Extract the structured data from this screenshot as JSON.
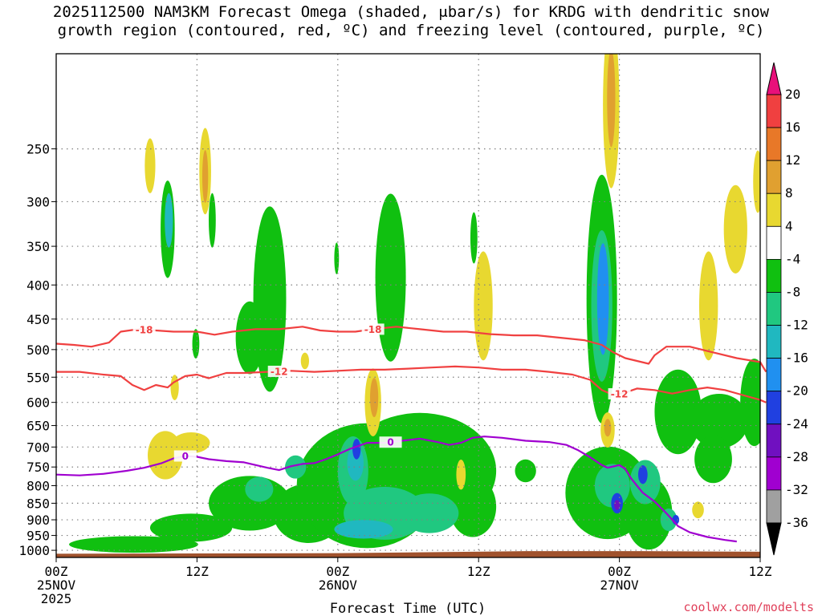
{
  "title": {
    "line1": "2025112500 NAM3KM Forecast Omega (shaded, μbar/s) for KRDG with dendritic snow",
    "line2": "growth region (contoured, red, ºC) and freezing level (contoured, purple, ºC)"
  },
  "credit": "coolwx.com/modelts",
  "colors": {
    "ground": "#a0522d",
    "dgz_contour": "#f04040",
    "freezing_contour": "#a000d0",
    "grid": "#808080"
  },
  "chart_data": {
    "type": "heatmap",
    "title": "2025112500 NAM3KM Forecast Omega (shaded, μbar/s) for KRDG with dendritic snow growth region (contoured, red, ºC) and freezing level (contoured, purple, ºC)",
    "xlabel": "Forecast Time (UTC)",
    "ylabel": "",
    "x_range_hours": [
      0,
      60
    ],
    "x_ticks": [
      {
        "hour": 0,
        "label": "00Z",
        "date": "25NOV",
        "year": "2025"
      },
      {
        "hour": 12,
        "label": "12Z",
        "date": "",
        "year": ""
      },
      {
        "hour": 24,
        "label": "00Z",
        "date": "26NOV",
        "year": ""
      },
      {
        "hour": 36,
        "label": "12Z",
        "date": "",
        "year": ""
      },
      {
        "hour": 48,
        "label": "00Z",
        "date": "27NOV",
        "year": ""
      },
      {
        "hour": 60,
        "label": "12Z",
        "date": "",
        "year": ""
      }
    ],
    "y_scale": "log-pressure",
    "y_range_hpa": [
      1025,
      180
    ],
    "y_ticks": [
      250,
      300,
      350,
      400,
      450,
      500,
      550,
      600,
      650,
      700,
      750,
      800,
      850,
      900,
      950,
      1000
    ],
    "grid": true,
    "colorbar": {
      "labels": [
        "20",
        "16",
        "12",
        "8",
        "4",
        "-4",
        "-8",
        "-12",
        "-16",
        "-20",
        "-24",
        "-28",
        "-32",
        "-36"
      ],
      "colors": [
        "#e8107a",
        "#f04040",
        "#e87828",
        "#e0a030",
        "#e8d830",
        "#ffffff",
        "#10c010",
        "#20c880",
        "#20b8c0",
        "#2090f0",
        "#2040e0",
        "#7010c0",
        "#a000d0",
        "#a0a0a0",
        "#000000"
      ]
    },
    "contours": [
      {
        "name": "dgz -18",
        "label": "-18",
        "color": "#f04040",
        "points": [
          [
            0,
            490
          ],
          [
            1.5,
            492
          ],
          [
            3,
            495
          ],
          [
            4.5,
            488
          ],
          [
            5.5,
            470
          ],
          [
            7,
            466
          ],
          [
            8.5,
            468
          ],
          [
            10,
            470
          ],
          [
            12,
            470
          ],
          [
            13.5,
            475
          ],
          [
            15,
            470
          ],
          [
            17,
            466
          ],
          [
            19,
            466
          ],
          [
            21,
            462
          ],
          [
            22.5,
            468
          ],
          [
            24,
            470
          ],
          [
            25.5,
            470
          ],
          [
            27,
            466
          ],
          [
            29,
            462
          ],
          [
            31,
            466
          ],
          [
            33,
            470
          ],
          [
            35,
            470
          ],
          [
            37,
            474
          ],
          [
            39,
            476
          ],
          [
            41,
            476
          ],
          [
            43,
            480
          ],
          [
            45,
            484
          ],
          [
            46.5,
            492
          ],
          [
            47.5,
            505
          ],
          [
            48.5,
            515
          ],
          [
            49.5,
            520
          ],
          [
            50.5,
            525
          ],
          [
            51,
            510
          ],
          [
            52,
            495
          ],
          [
            54,
            495
          ],
          [
            56,
            505
          ],
          [
            58,
            515
          ],
          [
            60,
            522
          ],
          [
            60.5,
            540
          ]
        ],
        "labels_at_hours": [
          7.5,
          27
        ]
      },
      {
        "name": "dgz -12",
        "label": "-12",
        "color": "#f04040",
        "points": [
          [
            0,
            540
          ],
          [
            2,
            540
          ],
          [
            4,
            545
          ],
          [
            5.5,
            548
          ],
          [
            6.5,
            565
          ],
          [
            7.5,
            575
          ],
          [
            8.5,
            565
          ],
          [
            9.5,
            570
          ],
          [
            10,
            560
          ],
          [
            11,
            548
          ],
          [
            12,
            545
          ],
          [
            13,
            552
          ],
          [
            14.5,
            542
          ],
          [
            16,
            542
          ],
          [
            18,
            540
          ],
          [
            20,
            538
          ],
          [
            22,
            540
          ],
          [
            24,
            538
          ],
          [
            26,
            536
          ],
          [
            28,
            536
          ],
          [
            30,
            534
          ],
          [
            32,
            532
          ],
          [
            34,
            530
          ],
          [
            36,
            532
          ],
          [
            38,
            536
          ],
          [
            40,
            536
          ],
          [
            42,
            540
          ],
          [
            44,
            545
          ],
          [
            45.5,
            555
          ],
          [
            46.5,
            575
          ],
          [
            47.5,
            585
          ],
          [
            48.5,
            580
          ],
          [
            49.5,
            572
          ],
          [
            51,
            575
          ],
          [
            52.5,
            582
          ],
          [
            54,
            575
          ],
          [
            55.5,
            570
          ],
          [
            57,
            575
          ],
          [
            58.5,
            585
          ],
          [
            60,
            595
          ],
          [
            60.5,
            600
          ]
        ],
        "labels_at_hours": [
          19,
          48
        ]
      },
      {
        "name": "freezing 0",
        "label": "0",
        "color": "#a000d0",
        "points": [
          [
            0,
            770
          ],
          [
            2,
            772
          ],
          [
            4,
            768
          ],
          [
            6,
            760
          ],
          [
            7.5,
            752
          ],
          [
            9,
            740
          ],
          [
            10,
            728
          ],
          [
            11,
            722
          ],
          [
            12,
            724
          ],
          [
            13,
            730
          ],
          [
            14.5,
            735
          ],
          [
            16,
            738
          ],
          [
            17,
            745
          ],
          [
            18,
            752
          ],
          [
            19,
            758
          ],
          [
            20,
            748
          ],
          [
            21,
            742
          ],
          [
            22,
            740
          ],
          [
            23,
            730
          ],
          [
            24,
            718
          ],
          [
            25,
            705
          ],
          [
            26.5,
            690
          ],
          [
            28,
            690
          ],
          [
            29.5,
            685
          ],
          [
            31,
            680
          ],
          [
            32.5,
            688
          ],
          [
            33.5,
            695
          ],
          [
            34.5,
            690
          ],
          [
            35.5,
            678
          ],
          [
            36.5,
            675
          ],
          [
            38,
            678
          ],
          [
            40,
            685
          ],
          [
            42,
            688
          ],
          [
            43.5,
            695
          ],
          [
            44.5,
            708
          ],
          [
            45.5,
            725
          ],
          [
            46.5,
            745
          ],
          [
            47,
            752
          ],
          [
            48,
            745
          ],
          [
            48.5,
            755
          ],
          [
            49,
            780
          ],
          [
            49.5,
            800
          ],
          [
            50,
            820
          ],
          [
            51,
            845
          ],
          [
            52,
            880
          ],
          [
            53,
            920
          ],
          [
            54,
            940
          ],
          [
            55.5,
            955
          ],
          [
            57,
            965
          ],
          [
            58,
            970
          ]
        ],
        "labels_at_hours": [
          11,
          28.5
        ]
      }
    ]
  }
}
